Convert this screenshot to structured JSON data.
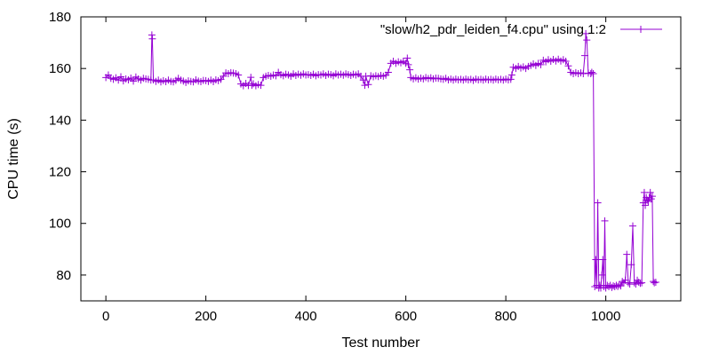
{
  "chart_data": {
    "type": "line",
    "xlabel": "Test number",
    "ylabel": "CPU time (s)",
    "xlim": [
      -50,
      1150
    ],
    "ylim": [
      70,
      180
    ],
    "xticks": [
      0,
      200,
      400,
      600,
      800,
      1000
    ],
    "yticks": [
      80,
      100,
      120,
      140,
      160,
      180
    ],
    "grid": false,
    "legend_position": "top-right",
    "marker": "plus",
    "series": [
      {
        "name": "\"slow/h2_pdr_leiden_f4.cpu\" using 1:2",
        "color": "#9400d3",
        "points": [
          [
            0,
            156.5
          ],
          [
            5,
            157.5
          ],
          [
            10,
            156.2
          ],
          [
            15,
            155.8
          ],
          [
            20,
            156.4
          ],
          [
            25,
            155.5
          ],
          [
            30,
            156.8
          ],
          [
            35,
            155.2
          ],
          [
            40,
            156.0
          ],
          [
            45,
            155.6
          ],
          [
            50,
            156.3
          ],
          [
            55,
            155.1
          ],
          [
            60,
            156.7
          ],
          [
            65,
            156.0
          ],
          [
            70,
            155.5
          ],
          [
            75,
            156.2
          ],
          [
            80,
            156.0
          ],
          [
            85,
            155.8
          ],
          [
            90,
            155.5
          ],
          [
            92,
            173.0
          ],
          [
            93,
            171.5
          ],
          [
            95,
            155.6
          ],
          [
            100,
            155.0
          ],
          [
            105,
            155.5
          ],
          [
            110,
            154.8
          ],
          [
            115,
            155.3
          ],
          [
            120,
            154.9
          ],
          [
            125,
            155.5
          ],
          [
            130,
            155.0
          ],
          [
            135,
            154.8
          ],
          [
            140,
            155.4
          ],
          [
            145,
            156.2
          ],
          [
            150,
            155.5
          ],
          [
            155,
            155.1
          ],
          [
            160,
            154.6
          ],
          [
            165,
            155.2
          ],
          [
            170,
            155.0
          ],
          [
            175,
            154.8
          ],
          [
            180,
            155.6
          ],
          [
            185,
            155.1
          ],
          [
            190,
            154.9
          ],
          [
            195,
            155.4
          ],
          [
            200,
            155.3
          ],
          [
            205,
            155.0
          ],
          [
            210,
            155.5
          ],
          [
            215,
            154.9
          ],
          [
            220,
            155.6
          ],
          [
            225,
            155.3
          ],
          [
            230,
            155.8
          ],
          [
            235,
            157.0
          ],
          [
            240,
            158.3
          ],
          [
            245,
            158.0
          ],
          [
            250,
            158.4
          ],
          [
            255,
            158.2
          ],
          [
            260,
            158.0
          ],
          [
            265,
            157.5
          ],
          [
            270,
            154.0
          ],
          [
            275,
            153.3
          ],
          [
            280,
            154.2
          ],
          [
            285,
            153.4
          ],
          [
            290,
            156.6
          ],
          [
            292,
            153.5
          ],
          [
            295,
            154.1
          ],
          [
            300,
            153.3
          ],
          [
            305,
            153.8
          ],
          [
            310,
            153.5
          ],
          [
            315,
            156.5
          ],
          [
            320,
            157.0
          ],
          [
            325,
            157.3
          ],
          [
            330,
            157.0
          ],
          [
            335,
            157.5
          ],
          [
            340,
            157.2
          ],
          [
            345,
            158.5
          ],
          [
            350,
            157.6
          ],
          [
            355,
            157.2
          ],
          [
            360,
            157.8
          ],
          [
            365,
            157.5
          ],
          [
            370,
            157.0
          ],
          [
            375,
            157.9
          ],
          [
            380,
            157.3
          ],
          [
            385,
            157.8
          ],
          [
            390,
            157.4
          ],
          [
            395,
            157.9
          ],
          [
            400,
            157.5
          ],
          [
            405,
            157.6
          ],
          [
            410,
            157.3
          ],
          [
            415,
            157.8
          ],
          [
            420,
            157.2
          ],
          [
            425,
            157.6
          ],
          [
            430,
            157.5
          ],
          [
            435,
            157.9
          ],
          [
            440,
            157.3
          ],
          [
            445,
            157.8
          ],
          [
            450,
            157.6
          ],
          [
            455,
            157.2
          ],
          [
            460,
            157.9
          ],
          [
            465,
            157.5
          ],
          [
            470,
            157.8
          ],
          [
            475,
            157.4
          ],
          [
            480,
            157.9
          ],
          [
            485,
            157.6
          ],
          [
            490,
            157.3
          ],
          [
            495,
            157.8
          ],
          [
            500,
            157.5
          ],
          [
            505,
            157.9
          ],
          [
            510,
            157.0
          ],
          [
            515,
            155.5
          ],
          [
            518,
            153.5
          ],
          [
            520,
            157.0
          ],
          [
            525,
            153.8
          ],
          [
            530,
            157.2
          ],
          [
            535,
            156.8
          ],
          [
            540,
            157.2
          ],
          [
            545,
            156.9
          ],
          [
            550,
            157.3
          ],
          [
            555,
            157.0
          ],
          [
            560,
            157.4
          ],
          [
            565,
            158.5
          ],
          [
            570,
            162.0
          ],
          [
            575,
            162.8
          ],
          [
            580,
            162.0
          ],
          [
            585,
            162.6
          ],
          [
            590,
            162.2
          ],
          [
            595,
            162.8
          ],
          [
            600,
            162.0
          ],
          [
            603,
            164.0
          ],
          [
            605,
            161.5
          ],
          [
            608,
            159.5
          ],
          [
            610,
            156.5
          ],
          [
            615,
            156.0
          ],
          [
            620,
            156.4
          ],
          [
            625,
            155.9
          ],
          [
            630,
            156.3
          ],
          [
            635,
            156.0
          ],
          [
            640,
            156.5
          ],
          [
            645,
            156.1
          ],
          [
            650,
            156.4
          ],
          [
            655,
            156.0
          ],
          [
            660,
            156.3
          ],
          [
            665,
            156.2
          ],
          [
            670,
            156.0
          ],
          [
            675,
            155.8
          ],
          [
            680,
            156.2
          ],
          [
            685,
            155.6
          ],
          [
            690,
            155.9
          ],
          [
            695,
            155.5
          ],
          [
            700,
            155.9
          ],
          [
            705,
            155.6
          ],
          [
            710,
            155.8
          ],
          [
            715,
            155.5
          ],
          [
            720,
            155.9
          ],
          [
            725,
            155.6
          ],
          [
            730,
            155.8
          ],
          [
            735,
            155.4
          ],
          [
            740,
            155.9
          ],
          [
            745,
            155.6
          ],
          [
            750,
            155.8
          ],
          [
            755,
            155.5
          ],
          [
            760,
            155.9
          ],
          [
            765,
            155.6
          ],
          [
            770,
            155.8
          ],
          [
            775,
            155.5
          ],
          [
            780,
            155.9
          ],
          [
            785,
            155.6
          ],
          [
            790,
            155.8
          ],
          [
            795,
            155.5
          ],
          [
            800,
            155.9
          ],
          [
            805,
            155.6
          ],
          [
            810,
            155.8
          ],
          [
            812,
            157.5
          ],
          [
            815,
            160.5
          ],
          [
            820,
            160.0
          ],
          [
            825,
            160.8
          ],
          [
            830,
            160.2
          ],
          [
            835,
            160.6
          ],
          [
            840,
            160.0
          ],
          [
            845,
            160.8
          ],
          [
            850,
            161.2
          ],
          [
            855,
            161.8
          ],
          [
            860,
            161.2
          ],
          [
            865,
            162.0
          ],
          [
            870,
            161.5
          ],
          [
            875,
            163.2
          ],
          [
            880,
            162.6
          ],
          [
            885,
            163.4
          ],
          [
            890,
            162.8
          ],
          [
            895,
            163.5
          ],
          [
            900,
            162.9
          ],
          [
            905,
            163.6
          ],
          [
            910,
            162.9
          ],
          [
            915,
            163.4
          ],
          [
            920,
            162.8
          ],
          [
            925,
            161.0
          ],
          [
            930,
            158.5
          ],
          [
            935,
            158.0
          ],
          [
            940,
            158.4
          ],
          [
            945,
            158.0
          ],
          [
            950,
            158.3
          ],
          [
            955,
            158.0
          ],
          [
            958,
            165.0
          ],
          [
            960,
            173.5
          ],
          [
            962,
            171.0
          ],
          [
            965,
            158.2
          ],
          [
            970,
            158.0
          ],
          [
            972,
            158.5
          ],
          [
            975,
            158.0
          ],
          [
            978,
            75.5
          ],
          [
            980,
            86.0
          ],
          [
            982,
            76.0
          ],
          [
            984,
            108.0
          ],
          [
            986,
            75.0
          ],
          [
            988,
            76.0
          ],
          [
            990,
            75.0
          ],
          [
            992,
            80.0
          ],
          [
            994,
            86.0
          ],
          [
            996,
            75.5
          ],
          [
            998,
            101.0
          ],
          [
            1000,
            75.0
          ],
          [
            1003,
            76.0
          ],
          [
            1006,
            75.5
          ],
          [
            1009,
            76.0
          ],
          [
            1012,
            75.2
          ],
          [
            1015,
            75.8
          ],
          [
            1018,
            75.5
          ],
          [
            1021,
            76.0
          ],
          [
            1024,
            75.6
          ],
          [
            1027,
            76.2
          ],
          [
            1030,
            75.8
          ],
          [
            1033,
            77.5
          ],
          [
            1036,
            77.0
          ],
          [
            1039,
            78.0
          ],
          [
            1042,
            88.0
          ],
          [
            1045,
            77.0
          ],
          [
            1048,
            76.5
          ],
          [
            1051,
            84.0
          ],
          [
            1054,
            99.0
          ],
          [
            1057,
            77.0
          ],
          [
            1060,
            76.5
          ],
          [
            1063,
            78.0
          ],
          [
            1066,
            77.2
          ],
          [
            1069,
            76.8
          ],
          [
            1072,
            77.0
          ],
          [
            1075,
            108.0
          ],
          [
            1077,
            112.0
          ],
          [
            1079,
            107.0
          ],
          [
            1081,
            110.0
          ],
          [
            1083,
            109.0
          ],
          [
            1085,
            108.5
          ],
          [
            1087,
            110.0
          ],
          [
            1089,
            112.0
          ],
          [
            1091,
            109.5
          ],
          [
            1093,
            110.5
          ],
          [
            1095,
            77.5
          ],
          [
            1097,
            77.0
          ],
          [
            1100,
            77.2
          ]
        ]
      }
    ]
  }
}
